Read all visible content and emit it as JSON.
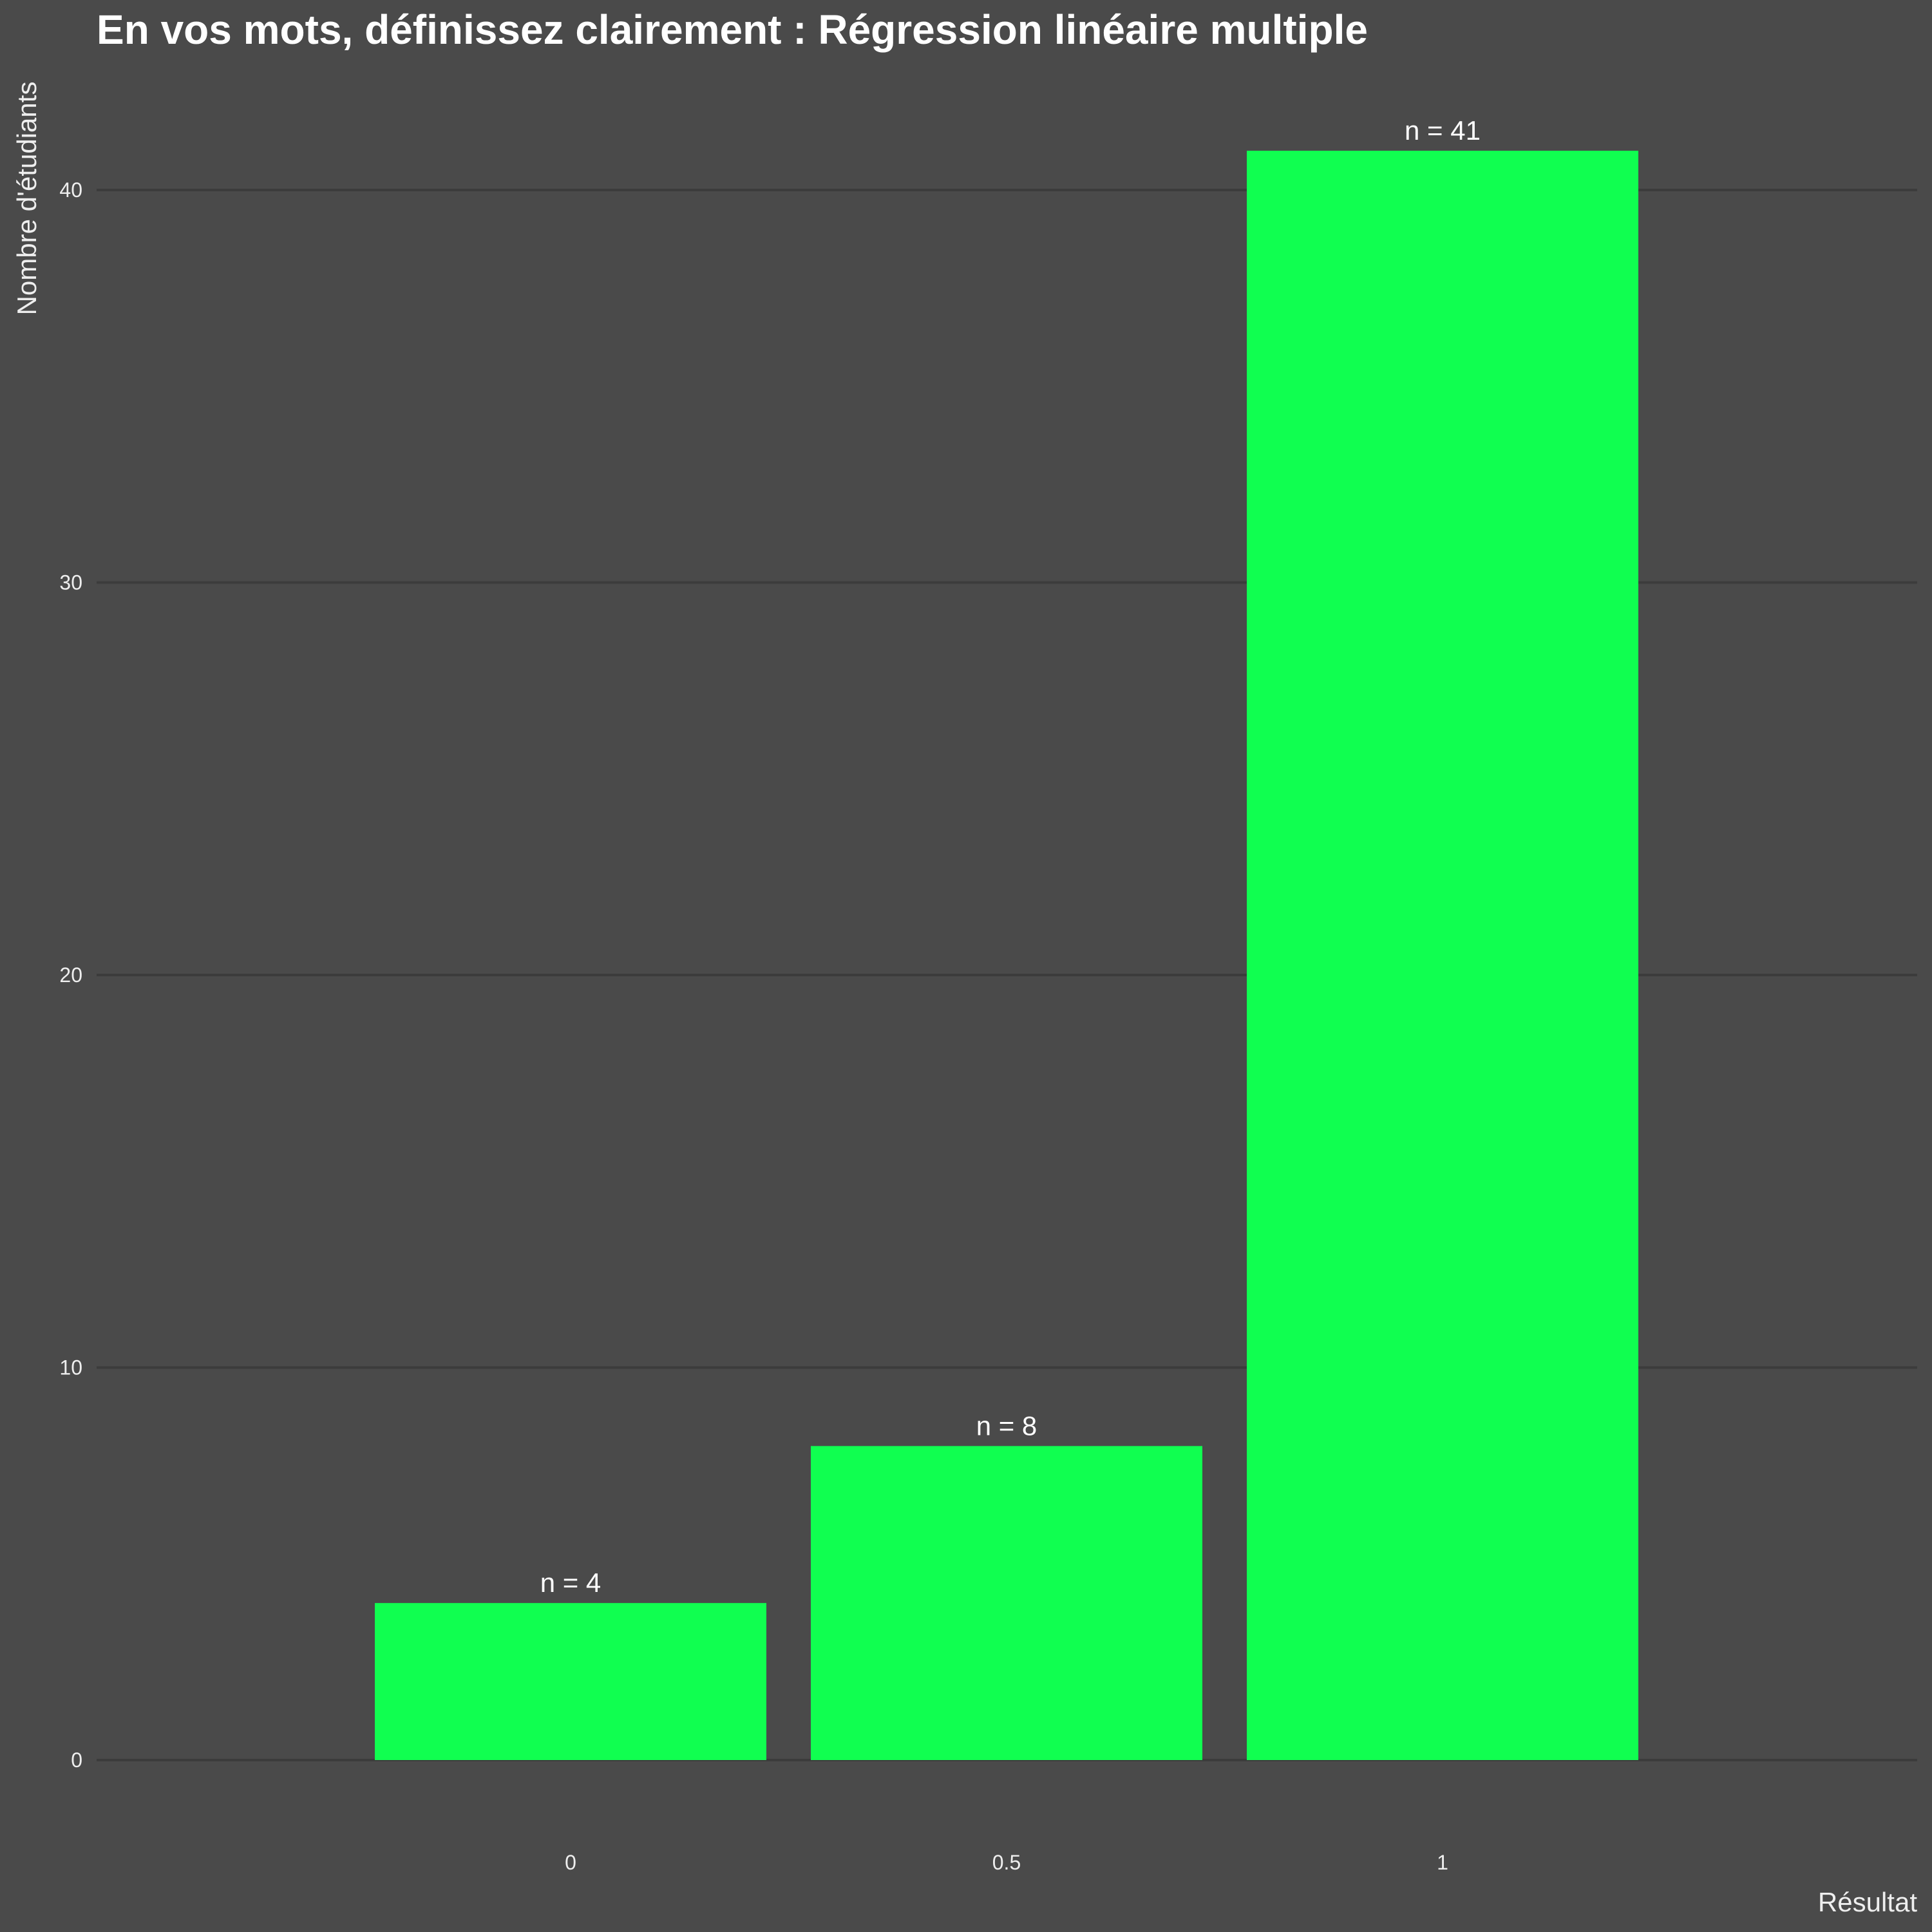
{
  "chart_data": {
    "type": "bar",
    "title": "En vos mots, définissez clairement : Régression linéaire multiple",
    "xlabel": "Résultat",
    "ylabel": "Nombre d'étudiants",
    "categories": [
      "0",
      "0.5",
      "1"
    ],
    "values": [
      4,
      8,
      41
    ],
    "bar_labels": [
      "n = 4",
      "n = 8",
      "n = 41"
    ],
    "yticks": [
      0,
      10,
      20,
      30,
      40
    ],
    "ylim": [
      0,
      42.6
    ],
    "grid": "horizontal",
    "legend": "none",
    "colors": {
      "background": "#4a4a4a",
      "bar": "#10ff50",
      "gridline": "#3c3c3c",
      "text": "#ffffff"
    }
  }
}
